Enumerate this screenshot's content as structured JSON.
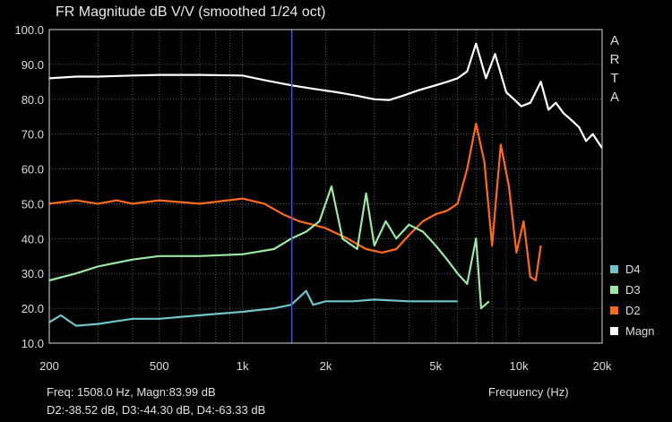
{
  "chart_data": {
    "type": "line",
    "title": "FR Magnitude dB V/V (smoothed 1/24 oct)",
    "xlabel": "Frequency (Hz)",
    "ylabel": "",
    "x_scale": "log",
    "xlim": [
      200,
      20000
    ],
    "ylim": [
      10,
      100
    ],
    "x_ticks": [
      200,
      500,
      1000,
      2000,
      5000,
      10000,
      20000
    ],
    "x_tick_labels": [
      "200",
      "500",
      "1k",
      "2k",
      "5k",
      "10k",
      "20k"
    ],
    "y_ticks": [
      10,
      20,
      30,
      40,
      50,
      60,
      70,
      80,
      90,
      100
    ],
    "y_tick_labels": [
      "10.0",
      "20.0",
      "30.0",
      "40.0",
      "50.0",
      "60.0",
      "70.0",
      "80.0",
      "90.0",
      "100.0"
    ],
    "grid": true,
    "legend_position": "right",
    "cursor_frequency": 1508,
    "series": [
      {
        "name": "Magn",
        "color": "#ffffff",
        "points": [
          [
            200,
            86
          ],
          [
            250,
            86.5
          ],
          [
            300,
            86.5
          ],
          [
            400,
            86.8
          ],
          [
            500,
            87
          ],
          [
            700,
            87
          ],
          [
            1000,
            86.8
          ],
          [
            1200,
            85.5
          ],
          [
            1500,
            84
          ],
          [
            1800,
            83
          ],
          [
            2200,
            82
          ],
          [
            2600,
            81
          ],
          [
            3000,
            80
          ],
          [
            3400,
            79.8
          ],
          [
            3800,
            81
          ],
          [
            4300,
            82.5
          ],
          [
            5000,
            84
          ],
          [
            5500,
            85
          ],
          [
            6000,
            86
          ],
          [
            6500,
            88
          ],
          [
            7000,
            96
          ],
          [
            7600,
            86
          ],
          [
            8200,
            93
          ],
          [
            9000,
            82
          ],
          [
            9600,
            80
          ],
          [
            10200,
            78
          ],
          [
            11000,
            79
          ],
          [
            12000,
            85
          ],
          [
            12800,
            77
          ],
          [
            13600,
            79
          ],
          [
            14500,
            76
          ],
          [
            15500,
            74
          ],
          [
            16500,
            72
          ],
          [
            17500,
            68
          ],
          [
            18500,
            70
          ],
          [
            20000,
            66
          ]
        ]
      },
      {
        "name": "D2",
        "color": "#ff6a1a",
        "points": [
          [
            200,
            50
          ],
          [
            250,
            51
          ],
          [
            300,
            50
          ],
          [
            350,
            51
          ],
          [
            400,
            50
          ],
          [
            500,
            51
          ],
          [
            700,
            50
          ],
          [
            1000,
            51.5
          ],
          [
            1200,
            50
          ],
          [
            1400,
            47
          ],
          [
            1600,
            45
          ],
          [
            1800,
            44
          ],
          [
            2000,
            43
          ],
          [
            2400,
            40
          ],
          [
            2800,
            37
          ],
          [
            3200,
            36
          ],
          [
            3600,
            37
          ],
          [
            4000,
            41
          ],
          [
            4500,
            45
          ],
          [
            5000,
            47
          ],
          [
            5500,
            48
          ],
          [
            6000,
            50
          ],
          [
            6500,
            60
          ],
          [
            7000,
            73
          ],
          [
            7500,
            62
          ],
          [
            8000,
            38
          ],
          [
            8600,
            67
          ],
          [
            9200,
            55
          ],
          [
            9800,
            36
          ],
          [
            10400,
            45
          ],
          [
            11000,
            29
          ],
          [
            11500,
            28
          ],
          [
            12000,
            38
          ]
        ]
      },
      {
        "name": "D3",
        "color": "#9be7a4",
        "points": [
          [
            200,
            28
          ],
          [
            250,
            30
          ],
          [
            300,
            32
          ],
          [
            400,
            34
          ],
          [
            500,
            35
          ],
          [
            700,
            35
          ],
          [
            1000,
            35.5
          ],
          [
            1300,
            37
          ],
          [
            1500,
            40
          ],
          [
            1700,
            42
          ],
          [
            1900,
            45
          ],
          [
            2100,
            55
          ],
          [
            2300,
            40
          ],
          [
            2600,
            37
          ],
          [
            2800,
            53
          ],
          [
            3000,
            38
          ],
          [
            3300,
            45
          ],
          [
            3600,
            40
          ],
          [
            4000,
            44
          ],
          [
            4500,
            42
          ],
          [
            5000,
            38
          ],
          [
            5500,
            34
          ],
          [
            6000,
            30
          ],
          [
            6500,
            27
          ],
          [
            7000,
            40
          ],
          [
            7300,
            20
          ],
          [
            7800,
            22
          ]
        ]
      },
      {
        "name": "D4",
        "color": "#6fc5c7",
        "points": [
          [
            200,
            16
          ],
          [
            220,
            18
          ],
          [
            250,
            15
          ],
          [
            300,
            15.5
          ],
          [
            400,
            17
          ],
          [
            500,
            17
          ],
          [
            700,
            18
          ],
          [
            1000,
            19
          ],
          [
            1300,
            20
          ],
          [
            1500,
            21
          ],
          [
            1700,
            25
          ],
          [
            1800,
            21
          ],
          [
            2000,
            22
          ],
          [
            2500,
            22
          ],
          [
            3000,
            22.5
          ],
          [
            4000,
            22
          ],
          [
            5000,
            22
          ],
          [
            6000,
            22
          ]
        ]
      }
    ],
    "annotations": [
      "Freq: 1508.0 Hz, Magn:83.99 dB",
      "D2:-38.52 dB, D3:-44.30 dB, D4:-63.33 dB"
    ],
    "watermark": "ARTA"
  }
}
